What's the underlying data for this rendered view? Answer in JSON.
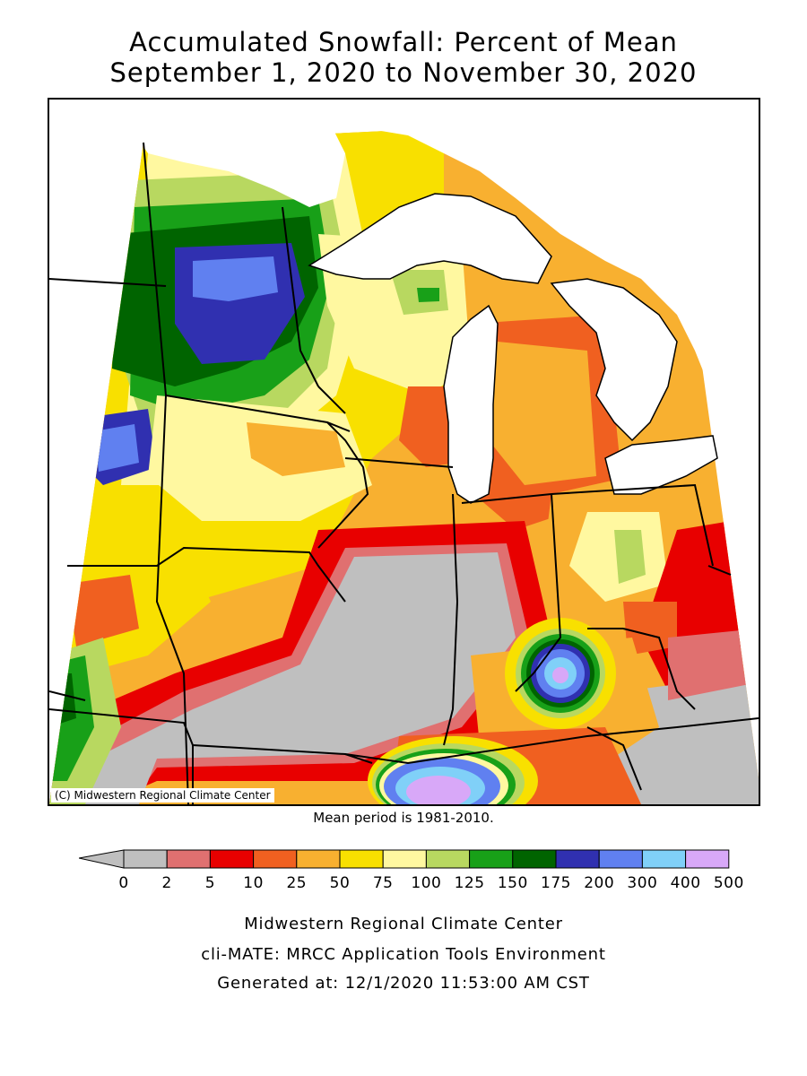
{
  "title_line1": "Accumulated Snowfall: Percent of Mean",
  "title_line2": "September 1, 2020 to November 30, 2020",
  "copyright": "(C) Midwestern Regional Climate Center",
  "mean_period": "Mean period is 1981-2010.",
  "legend": {
    "labels": [
      "0",
      "2",
      "5",
      "10",
      "25",
      "50",
      "75",
      "100",
      "125",
      "150",
      "175",
      "200",
      "300",
      "400",
      "500"
    ],
    "colors": [
      "#bfbfbf",
      "#e07070",
      "#e80000",
      "#f06020",
      "#f8b030",
      "#f8e000",
      "#fff8a0",
      "#b8d860",
      "#18a018",
      "#006400",
      "#3030b0",
      "#6080f0",
      "#80d0f8",
      "#d8a8f8"
    ]
  },
  "footer": {
    "line1": "Midwestern Regional Climate Center",
    "line2": "cli-MATE: MRCC Application Tools Environment",
    "line3": "Generated at: 12/1/2020 11:53:00 AM CST"
  }
}
